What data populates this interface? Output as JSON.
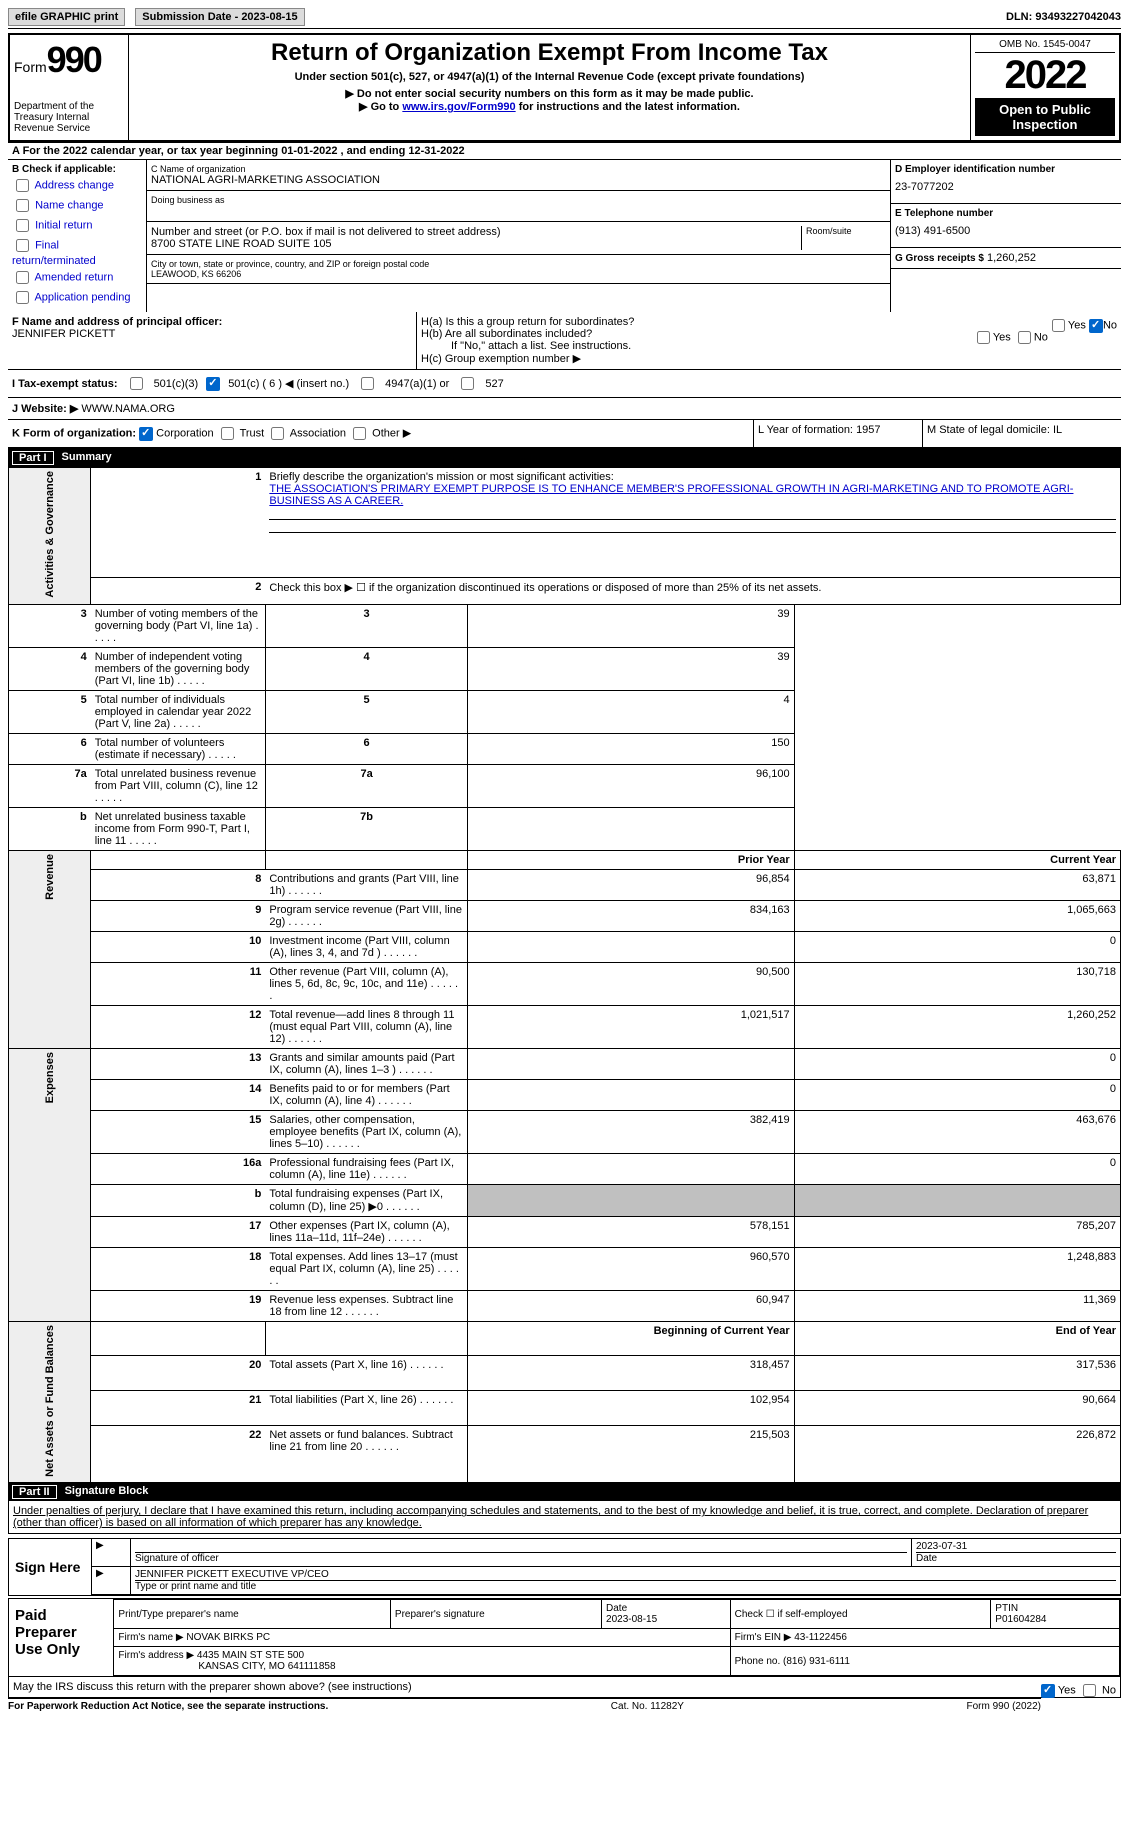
{
  "topbar": {
    "efile": "efile GRAPHIC print",
    "subdate_lbl": "Submission Date - 2023-08-15",
    "dln": "DLN: 93493227042043"
  },
  "header": {
    "form_word": "Form",
    "form_num": "990",
    "dept": "Department of the Treasury Internal Revenue Service",
    "title": "Return of Organization Exempt From Income Tax",
    "sub": "Under section 501(c), 527, or 4947(a)(1) of the Internal Revenue Code (except private foundations)",
    "hint1": "▶ Do not enter social security numbers on this form as it may be made public.",
    "hint2_pre": "▶ Go to ",
    "hint2_link": "www.irs.gov/Form990",
    "hint2_post": " for instructions and the latest information.",
    "omb": "OMB No. 1545-0047",
    "year": "2022",
    "open": "Open to Public Inspection"
  },
  "rowA": "A For the 2022 calendar year, or tax year beginning 01-01-2022    , and ending 12-31-2022",
  "colB": {
    "hdr": "B Check if applicable:",
    "items": [
      "Address change",
      "Name change",
      "Initial return",
      "Final return/terminated",
      "Amended return",
      "Application pending"
    ]
  },
  "colC": {
    "name_lbl": "C Name of organization",
    "name": "NATIONAL AGRI-MARKETING ASSOCIATION",
    "dba_lbl": "Doing business as",
    "addr_lbl": "Number and street (or P.O. box if mail is not delivered to street address)",
    "addr": "8700 STATE LINE ROAD SUITE 105",
    "suite_lbl": "Room/suite",
    "city_lbl": "City or town, state or province, country, and ZIP or foreign postal code",
    "city": "LEAWOOD, KS  66206"
  },
  "colD": {
    "ein_lbl": "D Employer identification number",
    "ein": "23-7077202",
    "tel_lbl": "E Telephone number",
    "tel": "(913) 491-6500",
    "gross_lbl": "G Gross receipts $",
    "gross": "1,260,252"
  },
  "rowF": {
    "lbl": "F Name and address of principal officer:",
    "name": "JENNIFER PICKETT",
    "ha": "H(a)  Is this a group return for subordinates?",
    "hb": "H(b)  Are all subordinates included?",
    "hbnote": "If \"No,\" attach a list. See instructions.",
    "hc": "H(c)  Group exemption number ▶",
    "yes": "Yes",
    "no": "No"
  },
  "taxstatus": {
    "lbl": "I   Tax-exempt status:",
    "c3": "501(c)(3)",
    "c": "501(c) ( 6 ) ◀ (insert no.)",
    "a4947": "4947(a)(1) or",
    "s527": "527"
  },
  "website": {
    "lbl": "J  Website: ▶",
    "val": "WWW.NAMA.ORG"
  },
  "rowK": {
    "form_lbl": "K Form of organization:",
    "corp": "Corporation",
    "trust": "Trust",
    "assoc": "Association",
    "other": "Other ▶",
    "year_lbl": "L Year of formation:",
    "year": "1957",
    "state_lbl": "M State of legal domicile:",
    "state": "IL"
  },
  "part1": "Summary",
  "summary": {
    "line1": "Briefly describe the organization's mission or most significant activities:",
    "mission": "THE ASSOCIATION'S PRIMARY EXEMPT PURPOSE IS TO ENHANCE MEMBER'S PROFESSIONAL GROWTH IN AGRI-MARKETING AND TO PROMOTE AGRI-BUSINESS AS A CAREER.",
    "line2": "Check this box ▶ ☐ if the organization discontinued its operations or disposed of more than 25% of its net assets.",
    "rows_a": [
      [
        "3",
        "Number of voting members of the governing body (Part VI, line 1a)",
        "3",
        "39"
      ],
      [
        "4",
        "Number of independent voting members of the governing body (Part VI, line 1b)",
        "4",
        "39"
      ],
      [
        "5",
        "Total number of individuals employed in calendar year 2022 (Part V, line 2a)",
        "5",
        "4"
      ],
      [
        "6",
        "Total number of volunteers (estimate if necessary)",
        "6",
        "150"
      ],
      [
        "7a",
        "Total unrelated business revenue from Part VIII, column (C), line 12",
        "7a",
        "96,100"
      ],
      [
        "b",
        "Net unrelated business taxable income from Form 990-T, Part I, line 11",
        "7b",
        ""
      ]
    ],
    "prior_hdr": "Prior Year",
    "curr_hdr": "Current Year",
    "rows_r": [
      [
        "8",
        "Contributions and grants (Part VIII, line 1h)",
        "96,854",
        "63,871"
      ],
      [
        "9",
        "Program service revenue (Part VIII, line 2g)",
        "834,163",
        "1,065,663"
      ],
      [
        "10",
        "Investment income (Part VIII, column (A), lines 3, 4, and 7d )",
        "",
        "0"
      ],
      [
        "11",
        "Other revenue (Part VIII, column (A), lines 5, 6d, 8c, 9c, 10c, and 11e)",
        "90,500",
        "130,718"
      ],
      [
        "12",
        "Total revenue—add lines 8 through 11 (must equal Part VIII, column (A), line 12)",
        "1,021,517",
        "1,260,252"
      ]
    ],
    "rows_e": [
      [
        "13",
        "Grants and similar amounts paid (Part IX, column (A), lines 1–3 )",
        "",
        "0"
      ],
      [
        "14",
        "Benefits paid to or for members (Part IX, column (A), line 4)",
        "",
        "0"
      ],
      [
        "15",
        "Salaries, other compensation, employee benefits (Part IX, column (A), lines 5–10)",
        "382,419",
        "463,676"
      ],
      [
        "16a",
        "Professional fundraising fees (Part IX, column (A), line 11e)",
        "",
        "0"
      ],
      [
        "b",
        "Total fundraising expenses (Part IX, column (D), line 25) ▶0",
        "shade",
        "shade"
      ],
      [
        "17",
        "Other expenses (Part IX, column (A), lines 11a–11d, 11f–24e)",
        "578,151",
        "785,207"
      ],
      [
        "18",
        "Total expenses. Add lines 13–17 (must equal Part IX, column (A), line 25)",
        "960,570",
        "1,248,883"
      ],
      [
        "19",
        "Revenue less expenses. Subtract line 18 from line 12",
        "60,947",
        "11,369"
      ]
    ],
    "beg_hdr": "Beginning of Current Year",
    "end_hdr": "End of Year",
    "rows_n": [
      [
        "20",
        "Total assets (Part X, line 16)",
        "318,457",
        "317,536"
      ],
      [
        "21",
        "Total liabilities (Part X, line 26)",
        "102,954",
        "90,664"
      ],
      [
        "22",
        "Net assets or fund balances. Subtract line 21 from line 20",
        "215,503",
        "226,872"
      ]
    ],
    "cat_a": "Activities & Governance",
    "cat_r": "Revenue",
    "cat_e": "Expenses",
    "cat_n": "Net Assets or Fund Balances"
  },
  "part2": "Signature Block",
  "penalty": "Under penalties of perjury, I declare that I have examined this return, including accompanying schedules and statements, and to the best of my knowledge and belief, it is true, correct, and complete. Declaration of preparer (other than officer) is based on all information of which preparer has any knowledge.",
  "sign": {
    "side": "Sign Here",
    "sig_lbl": "Signature of officer",
    "date": "2023-07-31",
    "name": "JENNIFER PICKETT EXECUTIVE VP/CEO",
    "name_lbl": "Type or print name and title"
  },
  "prep": {
    "side": "Paid Preparer Use Only",
    "print_lbl": "Print/Type preparer's name",
    "sig_lbl": "Preparer's signature",
    "date_lbl": "Date",
    "date": "2023-08-15",
    "check_lbl": "Check ☐ if self-employed",
    "ptin_lbl": "PTIN",
    "ptin": "P01604284",
    "firm_lbl": "Firm's name   ▶",
    "firm": "NOVAK BIRKS PC",
    "ein_lbl": "Firm's EIN ▶",
    "ein": "43-1122456",
    "addr_lbl": "Firm's address ▶",
    "addr": "4435 MAIN ST STE 500",
    "addr2": "KANSAS CITY, MO  641111858",
    "phone_lbl": "Phone no.",
    "phone": "(816) 931-6111"
  },
  "discuss": "May the IRS discuss this return with the preparer shown above? (see instructions)",
  "foot": {
    "l": "For Paperwork Reduction Act Notice, see the separate instructions.",
    "m": "Cat. No. 11282Y",
    "r": "Form 990 (2022)"
  }
}
